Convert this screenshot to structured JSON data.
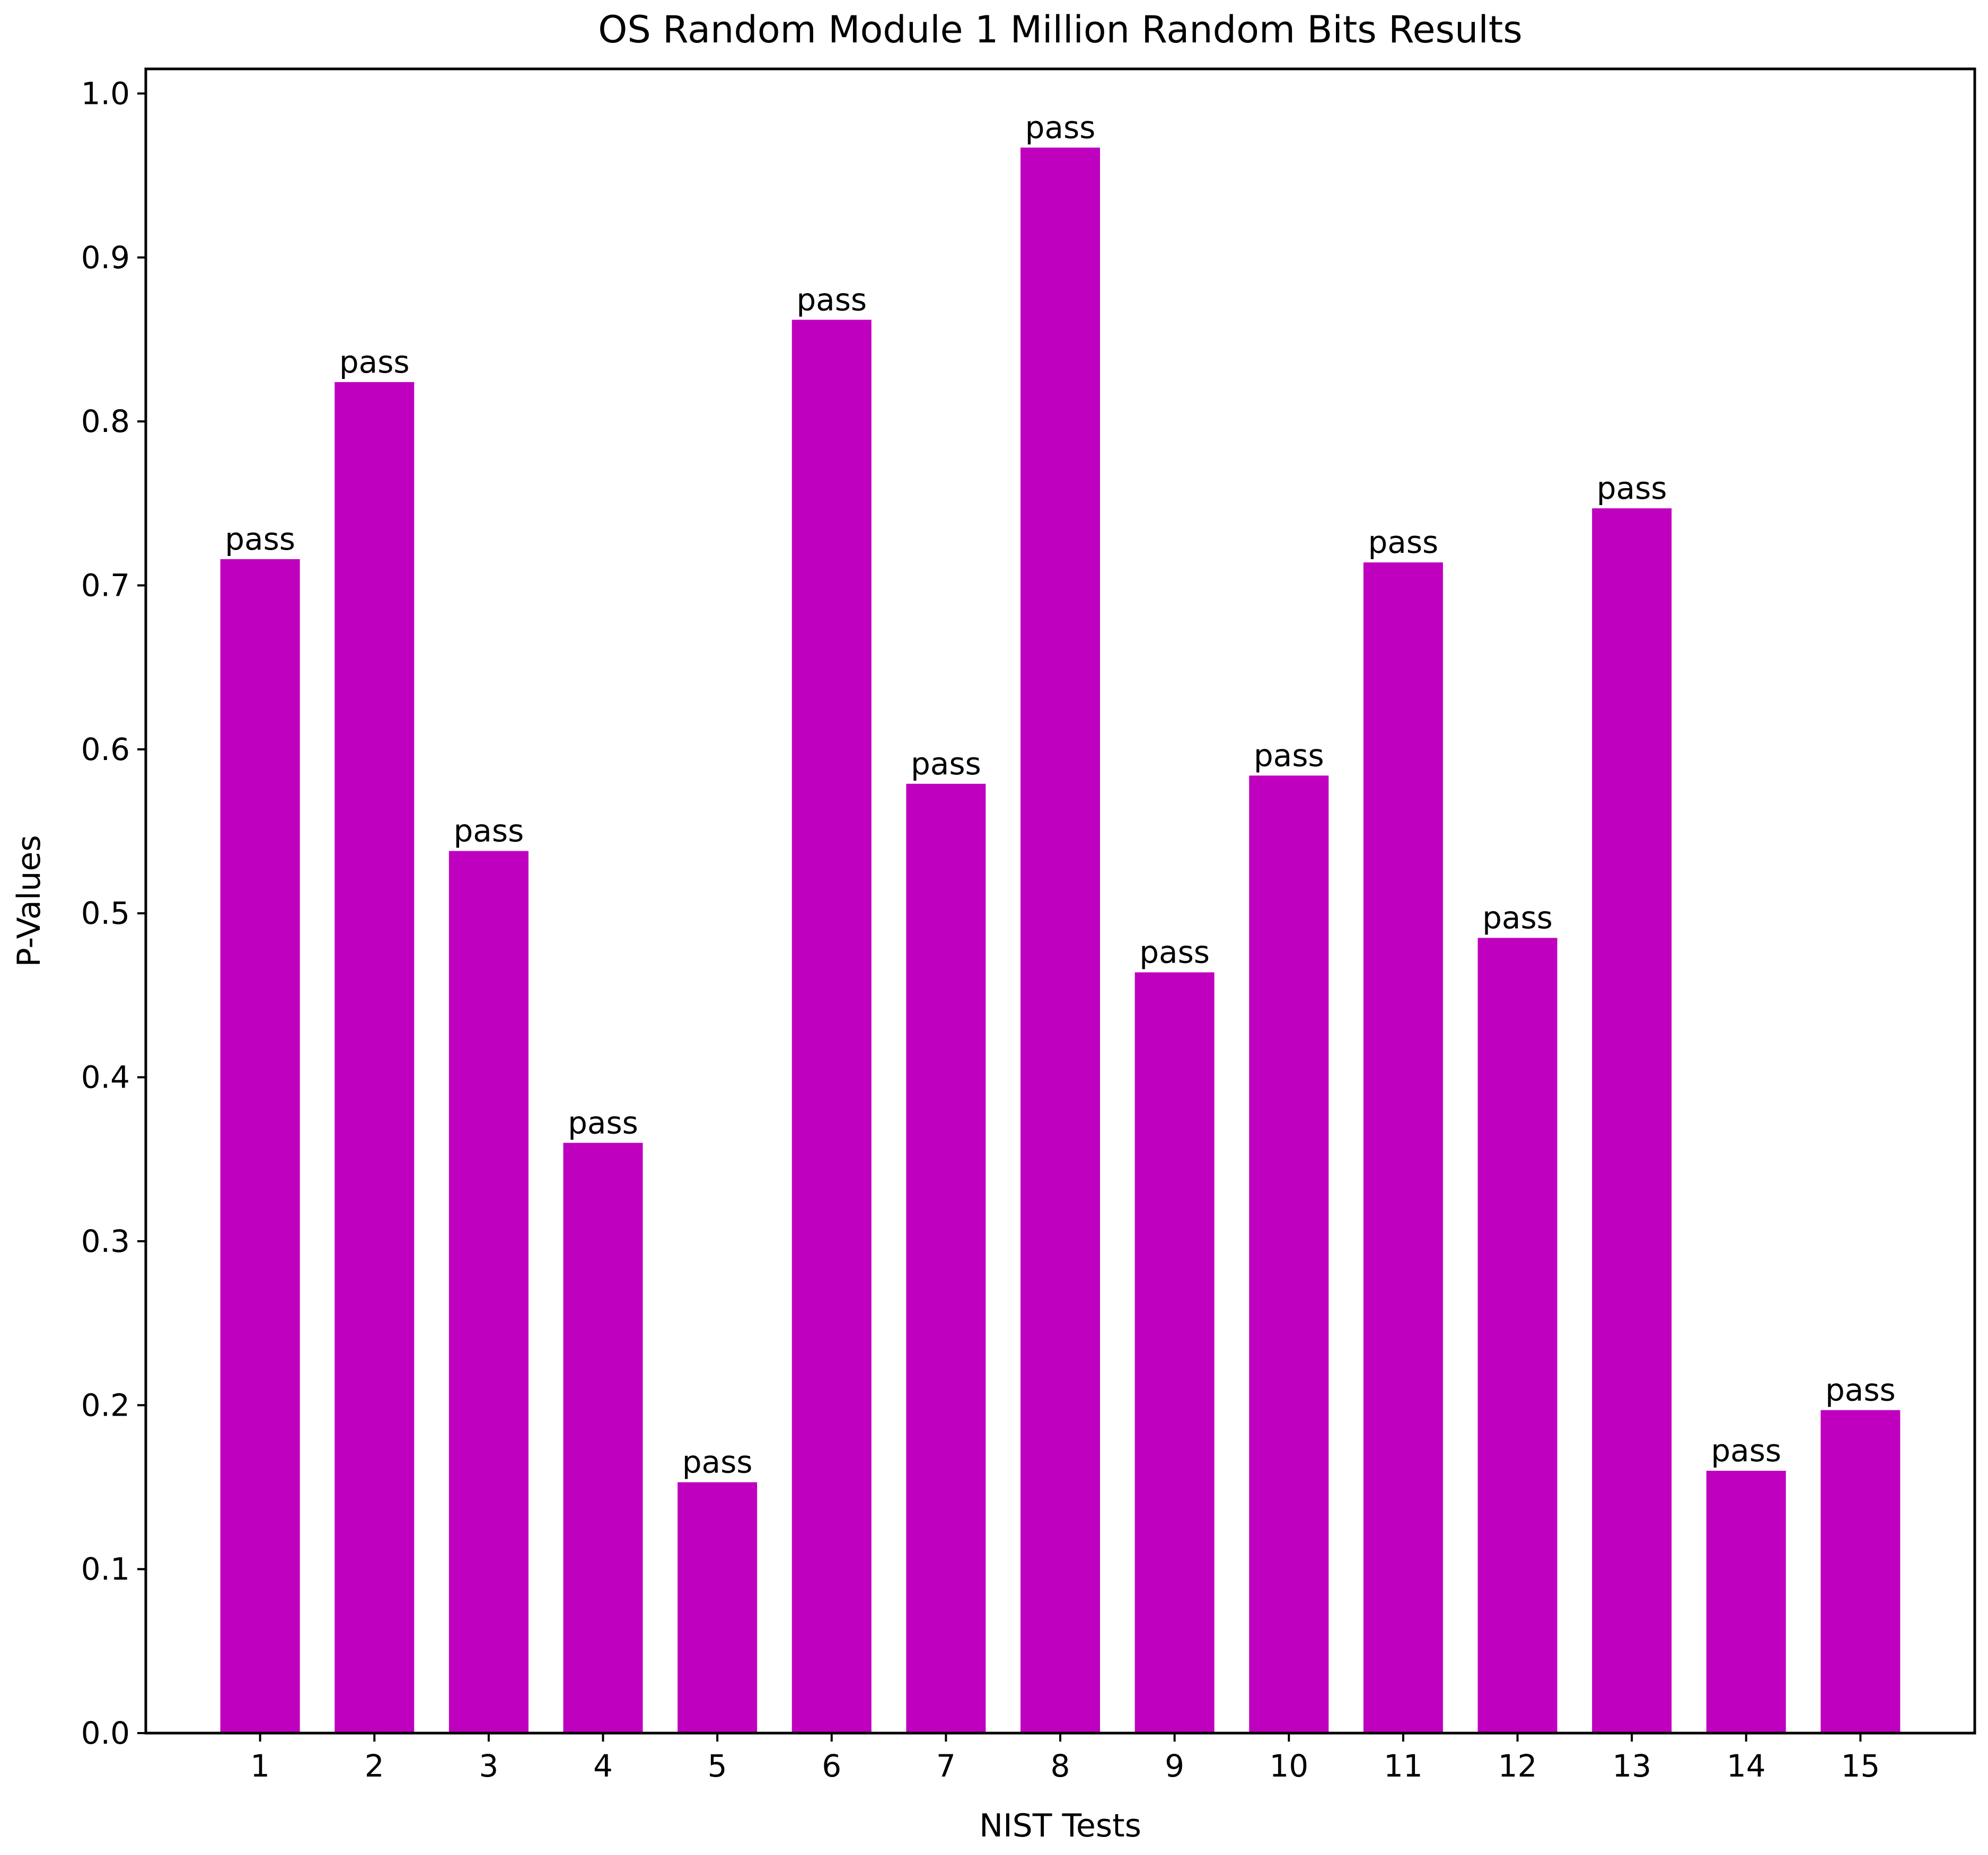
{
  "chart_data": {
    "type": "bar",
    "title": "OS Random Module 1 Million Random Bits Results",
    "xlabel": "NIST Tests",
    "ylabel": "P-Values",
    "categories": [
      "1",
      "2",
      "3",
      "4",
      "5",
      "6",
      "7",
      "8",
      "9",
      "10",
      "11",
      "12",
      "13",
      "14",
      "15"
    ],
    "values": [
      0.716,
      0.824,
      0.538,
      0.36,
      0.153,
      0.862,
      0.579,
      0.967,
      0.464,
      0.584,
      0.714,
      0.485,
      0.747,
      0.16,
      0.197
    ],
    "bar_labels": [
      "pass",
      "pass",
      "pass",
      "pass",
      "pass",
      "pass",
      "pass",
      "pass",
      "pass",
      "pass",
      "pass",
      "pass",
      "pass",
      "pass",
      "pass"
    ],
    "ylim": [
      0,
      1.015
    ],
    "yticks": [
      "0.0",
      "0.1",
      "0.2",
      "0.3",
      "0.4",
      "0.5",
      "0.6",
      "0.7",
      "0.8",
      "0.9",
      "1.0"
    ],
    "bar_color": "#bf00bf",
    "grid": false,
    "legend": "none"
  }
}
